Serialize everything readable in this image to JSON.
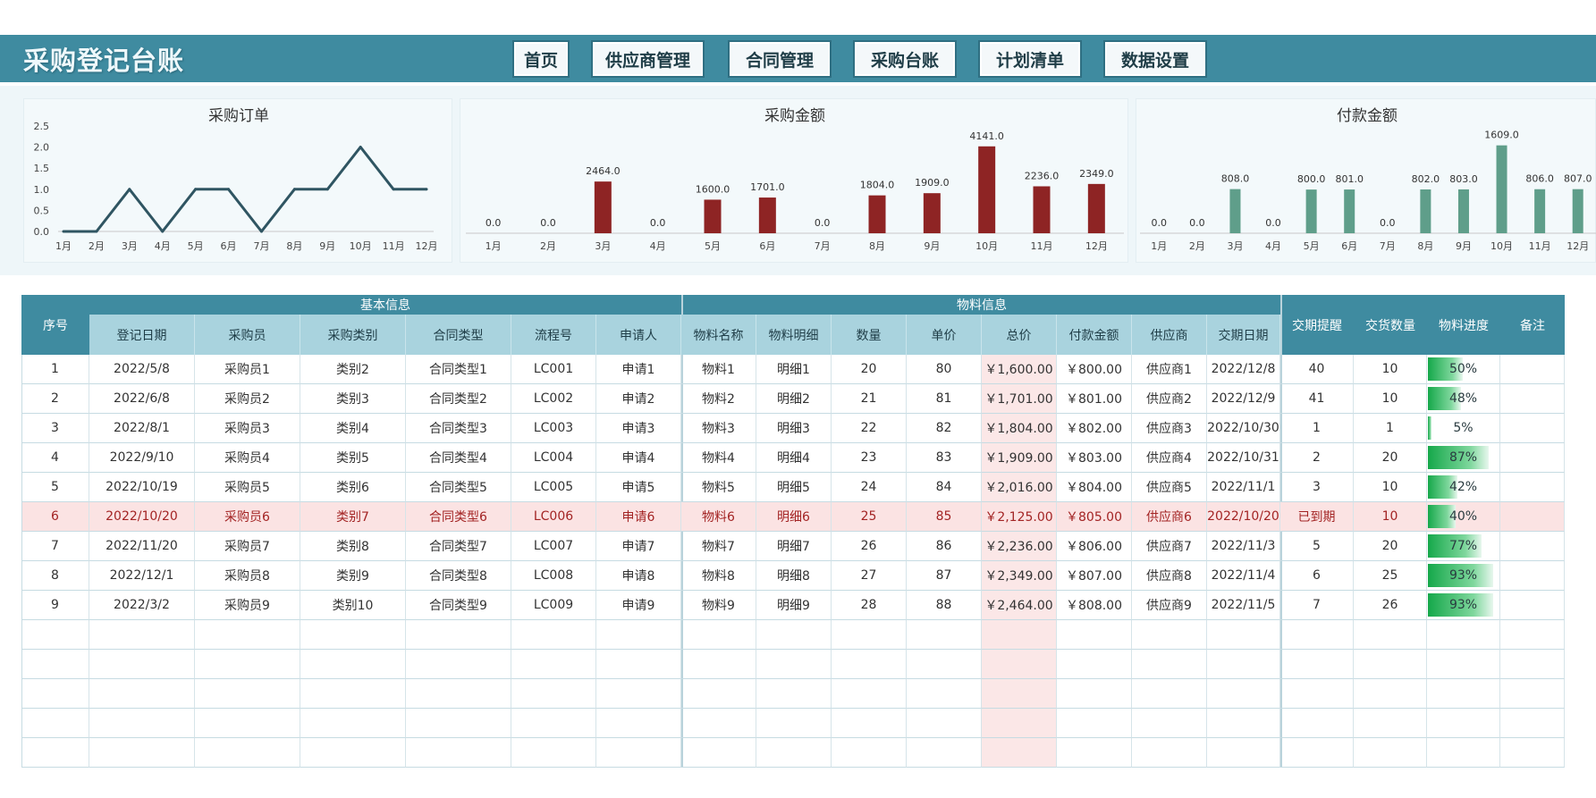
{
  "app": {
    "title": "采购登记台账"
  },
  "nav": [
    "首页",
    "供应商管理",
    "合同管理",
    "采购台账",
    "计划清单",
    "数据设置"
  ],
  "charts": {
    "orders": {
      "chart_data": {
        "type": "line",
        "title": "采购订单",
        "categories": [
          "1月",
          "2月",
          "3月",
          "4月",
          "5月",
          "6月",
          "7月",
          "8月",
          "9月",
          "10月",
          "11月",
          "12月"
        ],
        "values": [
          0,
          0,
          1,
          0,
          1,
          1,
          0,
          1,
          1,
          2,
          1,
          1
        ],
        "yticks": [
          "0.0",
          "0.5",
          "1.0",
          "1.5",
          "2.0",
          "2.5"
        ],
        "ylim": [
          0,
          2.5
        ],
        "color": "#2f5562"
      }
    },
    "purchase": {
      "chart_data": {
        "type": "bar",
        "title": "采购金额",
        "categories": [
          "1月",
          "2月",
          "3月",
          "4月",
          "5月",
          "6月",
          "7月",
          "8月",
          "9月",
          "10月",
          "11月",
          "12月"
        ],
        "values": [
          0,
          0,
          2464,
          0,
          1600,
          1701,
          0,
          1804,
          1909,
          4141,
          2236,
          2349
        ],
        "labels": [
          "0.0",
          "0.0",
          "2464.0",
          "0.0",
          "1600.0",
          "1701.0",
          "0.0",
          "1804.0",
          "1909.0",
          "4141.0",
          "2236.0",
          "2349.0"
        ],
        "ylim": [
          0,
          4600
        ],
        "color": "#8e2424"
      }
    },
    "payment": {
      "chart_data": {
        "type": "bar",
        "title": "付款金额",
        "categories": [
          "1月",
          "2月",
          "3月",
          "4月",
          "5月",
          "6月",
          "7月",
          "8月",
          "9月",
          "10月",
          "11月",
          "12月"
        ],
        "values": [
          0,
          0,
          808,
          0,
          800,
          801,
          0,
          802,
          803,
          1609,
          806,
          807
        ],
        "labels": [
          "0.0",
          "0.0",
          "808.0",
          "0.0",
          "800.0",
          "801.0",
          "0.0",
          "802.0",
          "803.0",
          "1609.0",
          "806.0",
          "807.0"
        ],
        "ylim": [
          0,
          1800
        ],
        "color": "#5f9e8a"
      }
    }
  },
  "table": {
    "group_headers": [
      "基本信息",
      "物料信息"
    ],
    "headers": [
      "序号",
      "登记日期",
      "采购员",
      "采购类别",
      "合同类型",
      "流程号",
      "申请人",
      "物料名称",
      "物料明细",
      "数量",
      "单价",
      "总价",
      "付款金额",
      "供应商",
      "交期日期",
      "交期提醒",
      "交货数量",
      "物料进度",
      "备注"
    ],
    "rows": [
      {
        "cells": [
          "1",
          "2022/5/8",
          "采购员1",
          "类别2",
          "合同类型1",
          "LC001",
          "申请1",
          "物料1",
          "明细1",
          "20",
          "80",
          "￥1,600.00",
          "￥800.00",
          "供应商1",
          "2022/12/8",
          "40",
          "10",
          "50%",
          ""
        ],
        "progress": 0.5,
        "highlight": false
      },
      {
        "cells": [
          "2",
          "2022/6/8",
          "采购员2",
          "类别3",
          "合同类型2",
          "LC002",
          "申请2",
          "物料2",
          "明细2",
          "21",
          "81",
          "￥1,701.00",
          "￥801.00",
          "供应商2",
          "2022/12/9",
          "41",
          "10",
          "48%",
          ""
        ],
        "progress": 0.48,
        "highlight": false
      },
      {
        "cells": [
          "3",
          "2022/8/1",
          "采购员3",
          "类别4",
          "合同类型3",
          "LC003",
          "申请3",
          "物料3",
          "明细3",
          "22",
          "82",
          "￥1,804.00",
          "￥802.00",
          "供应商3",
          "2022/10/30",
          "1",
          "1",
          "5%",
          ""
        ],
        "progress": 0.05,
        "highlight": false
      },
      {
        "cells": [
          "4",
          "2022/9/10",
          "采购员4",
          "类别5",
          "合同类型4",
          "LC004",
          "申请4",
          "物料4",
          "明细4",
          "23",
          "83",
          "￥1,909.00",
          "￥803.00",
          "供应商4",
          "2022/10/31",
          "2",
          "20",
          "87%",
          ""
        ],
        "progress": 0.87,
        "highlight": false
      },
      {
        "cells": [
          "5",
          "2022/10/19",
          "采购员5",
          "类别6",
          "合同类型5",
          "LC005",
          "申请5",
          "物料5",
          "明细5",
          "24",
          "84",
          "￥2,016.00",
          "￥804.00",
          "供应商5",
          "2022/11/1",
          "3",
          "10",
          "42%",
          ""
        ],
        "progress": 0.42,
        "highlight": false
      },
      {
        "cells": [
          "6",
          "2022/10/20",
          "采购员6",
          "类别7",
          "合同类型6",
          "LC006",
          "申请6",
          "物料6",
          "明细6",
          "25",
          "85",
          "￥2,125.00",
          "￥805.00",
          "供应商6",
          "2022/10/20",
          "已到期",
          "10",
          "40%",
          ""
        ],
        "progress": 0.4,
        "highlight": true
      },
      {
        "cells": [
          "7",
          "2022/11/20",
          "采购员7",
          "类别8",
          "合同类型7",
          "LC007",
          "申请7",
          "物料7",
          "明细7",
          "26",
          "86",
          "￥2,236.00",
          "￥806.00",
          "供应商7",
          "2022/11/3",
          "5",
          "20",
          "77%",
          ""
        ],
        "progress": 0.77,
        "highlight": false
      },
      {
        "cells": [
          "8",
          "2022/12/1",
          "采购员8",
          "类别9",
          "合同类型8",
          "LC008",
          "申请8",
          "物料8",
          "明细8",
          "27",
          "87",
          "￥2,349.00",
          "￥807.00",
          "供应商8",
          "2022/11/4",
          "6",
          "25",
          "93%",
          ""
        ],
        "progress": 0.93,
        "highlight": false
      },
      {
        "cells": [
          "9",
          "2022/3/2",
          "采购员9",
          "类别10",
          "合同类型9",
          "LC009",
          "申请9",
          "物料9",
          "明细9",
          "28",
          "88",
          "￥2,464.00",
          "￥808.00",
          "供应商9",
          "2022/11/5",
          "7",
          "26",
          "93%",
          ""
        ],
        "progress": 0.93,
        "highlight": false
      }
    ],
    "empty_rows": 5
  }
}
